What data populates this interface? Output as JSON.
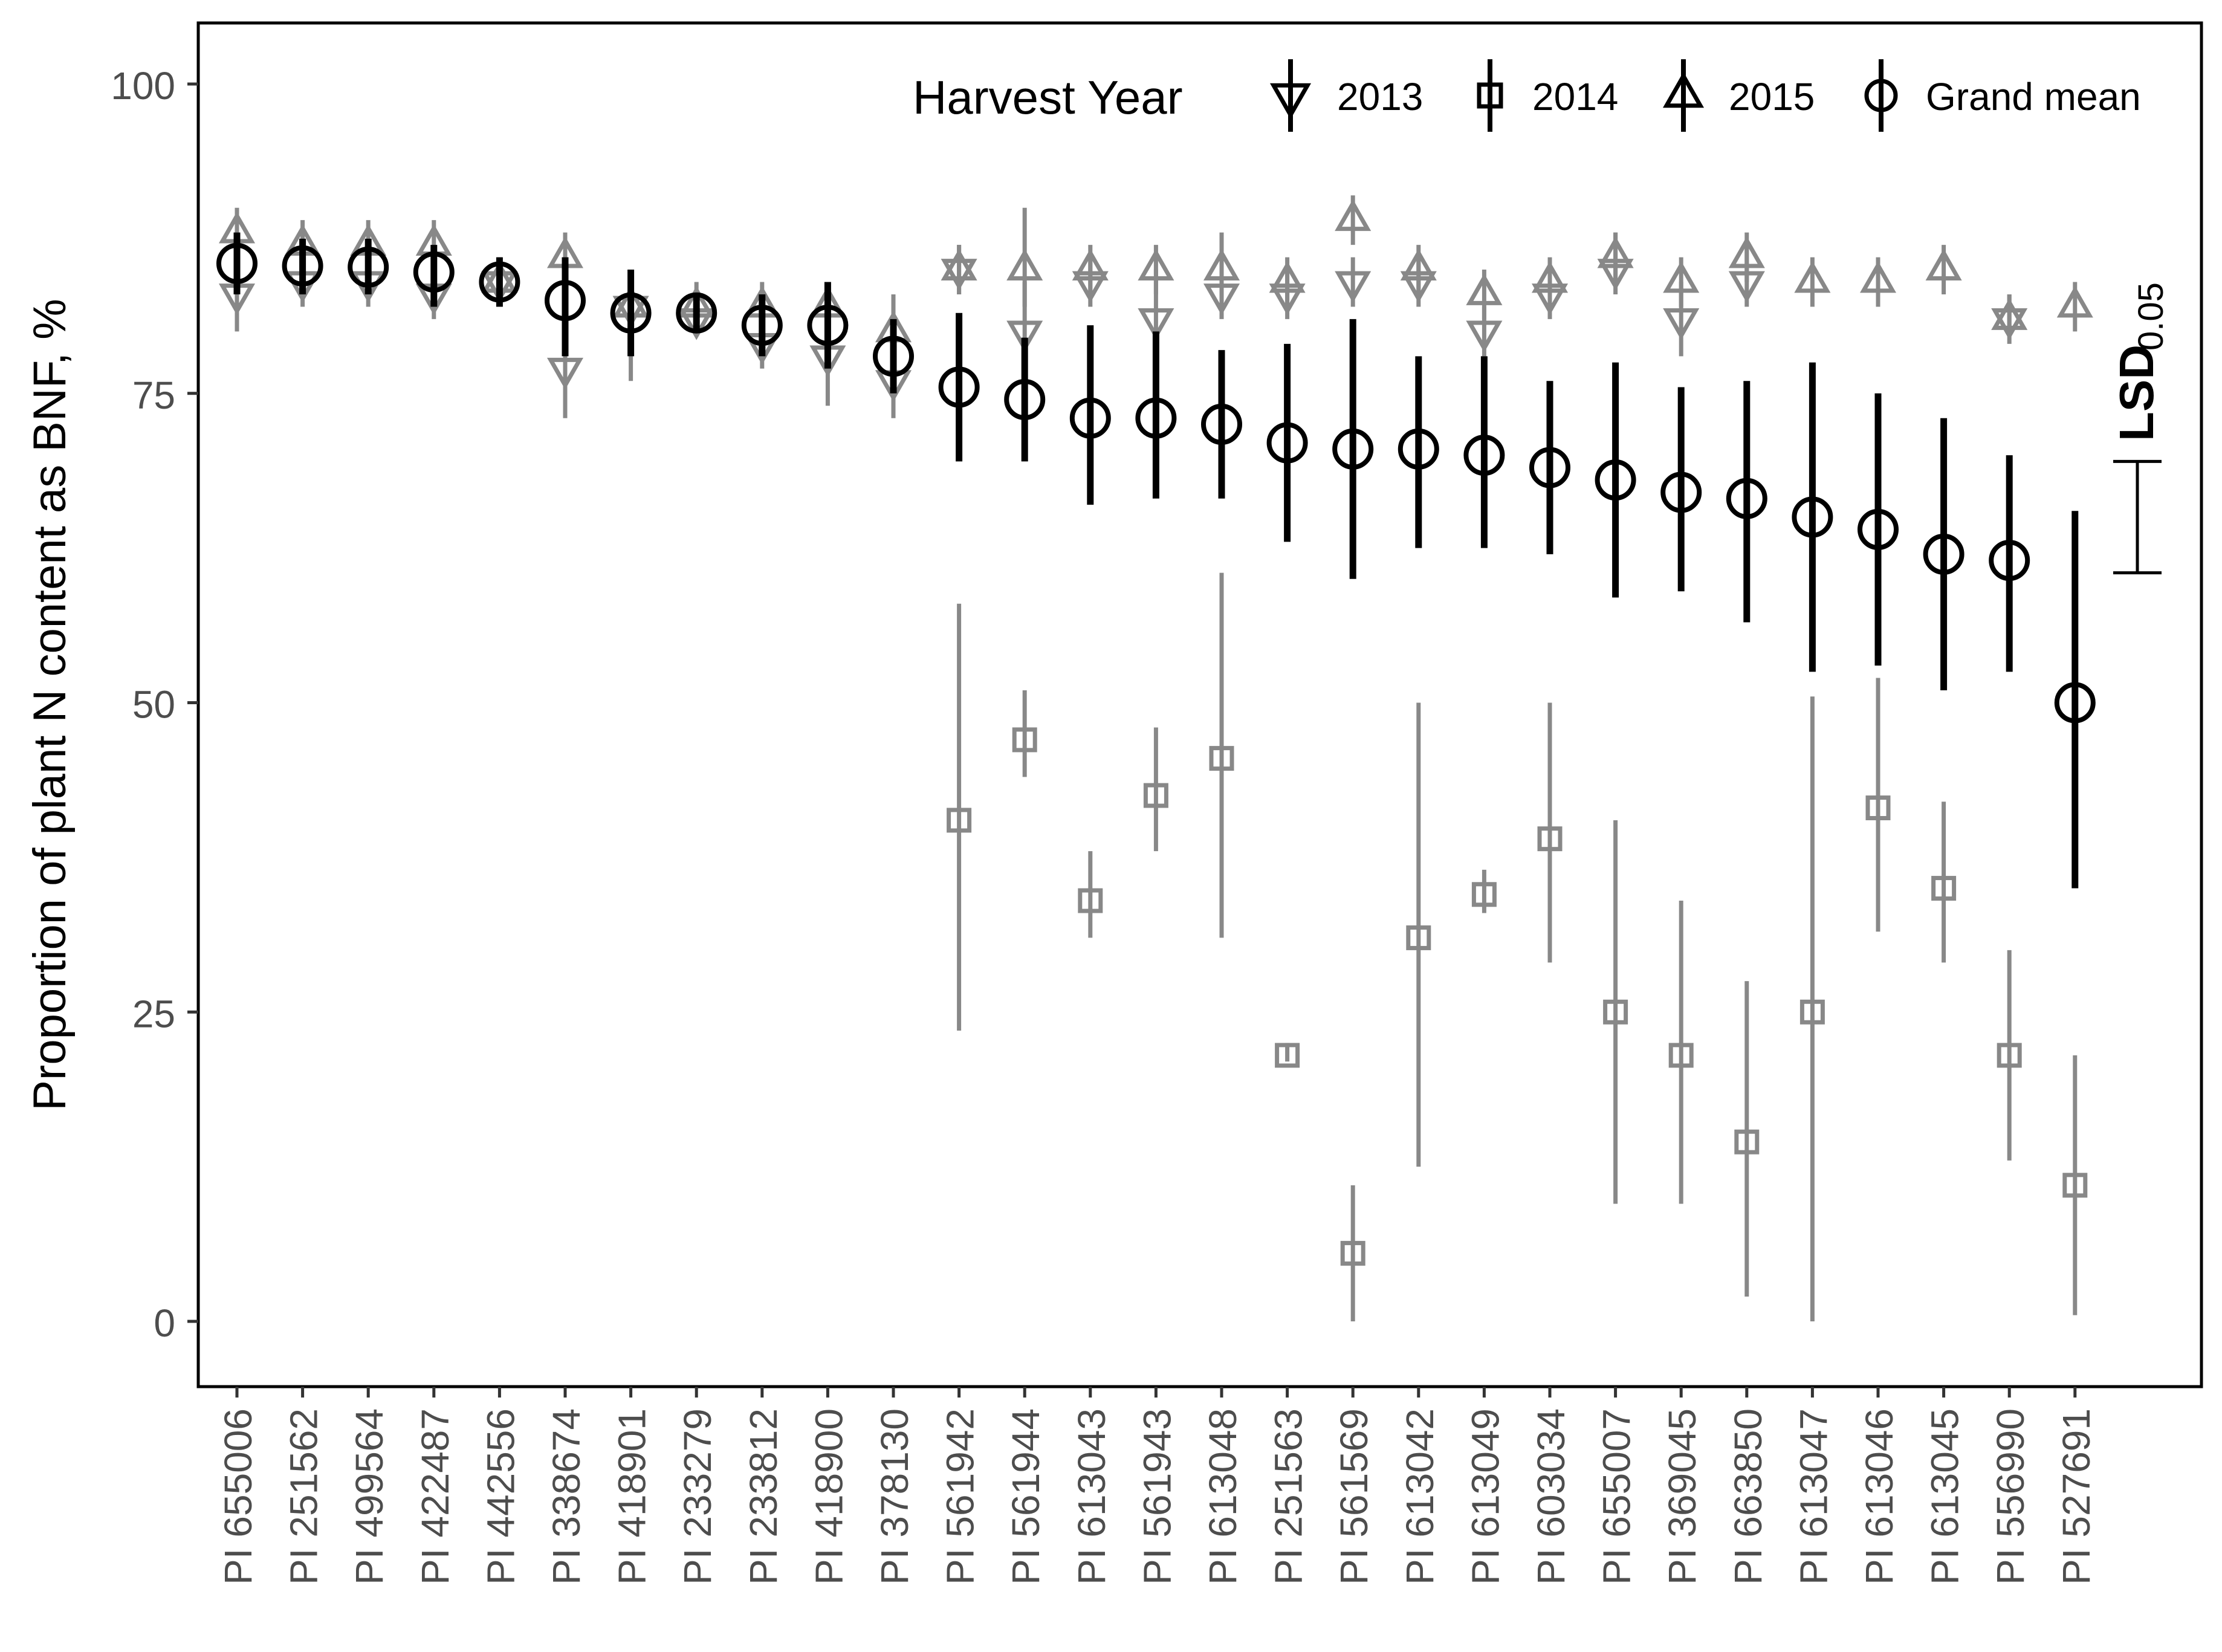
{
  "chart_data": {
    "type": "scatter",
    "title": "",
    "xlabel": "",
    "ylabel": "Proportion of plant N content as BNF, %",
    "ylim": [
      -5,
      105
    ],
    "yticks": [
      0,
      25,
      50,
      75,
      100
    ],
    "grid": false,
    "legend": {
      "position": "top-right",
      "title": "Harvest Year",
      "entries": [
        "2013",
        "2014",
        "2015",
        "Grand mean"
      ]
    },
    "colors": {
      "grand_mean": "#000000",
      "years": "#888888"
    },
    "categories": [
      "PI 655006",
      "PI 251562",
      "PI 499564",
      "PI 422487",
      "PI 442556",
      "PI 338674",
      "PI 418901",
      "PI 233279",
      "PI 233812",
      "PI 418900",
      "PI 378130",
      "PI 561942",
      "PI 561944",
      "PI 613043",
      "PI 561943",
      "PI 613048",
      "PI 251563",
      "PI 561569",
      "PI 613042",
      "PI 613049",
      "PI 603034",
      "PI 655007",
      "PI 369045",
      "PI 663850",
      "PI 613047",
      "PI 613046",
      "PI 613045",
      "PI 556990",
      "PI 527691"
    ],
    "series": [
      {
        "name": "2013",
        "marker": "triangle-down",
        "values": [
          83,
          84,
          84,
          83,
          84,
          77,
          82,
          81,
          79,
          78,
          76,
          85,
          80,
          84,
          81,
          83,
          83,
          84,
          84,
          80,
          83,
          85,
          81,
          84,
          null,
          null,
          null,
          81,
          null
        ],
        "err_low": [
          80,
          82,
          82,
          81,
          82,
          73,
          76,
          80,
          77,
          74,
          73,
          83,
          77,
          82,
          78,
          81,
          81,
          82,
          82,
          78,
          81,
          83,
          78,
          82,
          null,
          null,
          null,
          80,
          null
        ],
        "err_high": [
          86,
          87,
          87,
          86,
          86,
          80,
          85,
          83,
          82,
          82,
          79,
          87,
          84,
          86,
          85,
          86,
          85,
          86,
          86,
          82,
          85,
          88,
          84,
          87,
          null,
          null,
          null,
          83,
          null
        ]
      },
      {
        "name": "2014",
        "marker": "square",
        "values": [
          null,
          null,
          null,
          null,
          null,
          null,
          null,
          null,
          null,
          null,
          null,
          40.5,
          47,
          34,
          42.5,
          45.5,
          21.5,
          5.5,
          31,
          34.5,
          39,
          25,
          21.5,
          14.5,
          25,
          41.5,
          35,
          21.5,
          11
        ],
        "err_low": [
          null,
          null,
          null,
          null,
          null,
          null,
          null,
          null,
          null,
          null,
          null,
          23.5,
          44,
          31,
          38,
          31,
          21,
          0,
          12.5,
          33,
          29,
          9.5,
          9.5,
          2,
          0,
          31.5,
          29,
          13,
          0.5
        ],
        "err_high": [
          null,
          null,
          null,
          null,
          null,
          null,
          null,
          null,
          null,
          null,
          null,
          58,
          51,
          38,
          48,
          60.5,
          22.5,
          11,
          50,
          36.5,
          50,
          40.5,
          34,
          27.5,
          50.5,
          52,
          42,
          30,
          21.5
        ]
      },
      {
        "name": "2015",
        "marker": "triangle-up",
        "values": [
          88,
          87,
          87,
          87,
          84,
          86,
          82,
          82,
          82,
          82,
          80,
          85,
          85,
          85,
          85,
          85,
          84,
          89,
          85,
          83,
          84,
          86,
          84,
          86,
          84,
          84,
          85,
          81,
          82
        ],
        "err_low": [
          86,
          85,
          85,
          85,
          82,
          84,
          80,
          80,
          80,
          80,
          78,
          83,
          82,
          83,
          83,
          82,
          82,
          87,
          83,
          81,
          82,
          84,
          82,
          84,
          82,
          82,
          83,
          79,
          80
        ],
        "err_high": [
          90,
          89,
          89,
          89,
          86,
          88,
          84,
          84,
          84,
          84,
          83,
          87,
          90,
          87,
          87,
          88,
          86,
          91,
          87,
          85,
          86,
          88,
          86,
          88,
          86,
          86,
          87,
          83,
          84
        ]
      },
      {
        "name": "Grand mean",
        "marker": "circle",
        "values": [
          85.5,
          85.3,
          85.2,
          84.8,
          84,
          82.5,
          81.5,
          81.5,
          80.5,
          80.5,
          78,
          75.5,
          74.5,
          73,
          73,
          72.5,
          71,
          70.5,
          70.5,
          70,
          69,
          68,
          67,
          66.5,
          65,
          64,
          62,
          61.5,
          50
        ],
        "err_low": [
          83,
          83,
          83,
          82,
          82,
          78,
          78,
          80,
          78,
          77,
          75,
          69.5,
          69.5,
          66,
          66.5,
          66.5,
          63,
          60,
          62.5,
          62.5,
          62,
          58.5,
          59,
          56.5,
          52.5,
          53,
          51,
          52.5,
          35
        ],
        "err_high": [
          88,
          87.5,
          87.5,
          87,
          86,
          86,
          85,
          83,
          83,
          84,
          81,
          81.5,
          79.5,
          80.5,
          80,
          78.5,
          79,
          81,
          78,
          78,
          76,
          77.5,
          75.5,
          76,
          77.5,
          75,
          73,
          70,
          65.5
        ]
      }
    ],
    "lsd": {
      "label_main": "LSD",
      "label_sub": "0.05",
      "low": 60.5,
      "high": 69.5
    }
  }
}
